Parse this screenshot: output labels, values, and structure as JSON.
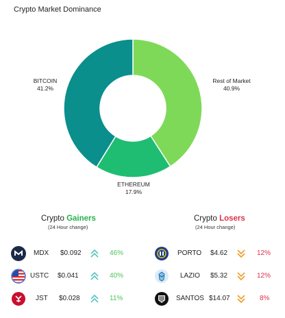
{
  "title": "Crypto Market Dominance",
  "chart_data": {
    "type": "pie",
    "categories": [
      "Rest of Market",
      "ETHEREUM",
      "BITCOIN"
    ],
    "values": [
      40.9,
      17.9,
      41.2
    ],
    "value_labels": [
      "40.9%",
      "17.9%",
      "41.2%"
    ],
    "colors": [
      "#7ed958",
      "#1fbd72",
      "#0a8f8c"
    ]
  },
  "gainers": {
    "title_prefix": "Crypto ",
    "title_accent": "Gainers",
    "subtitle": "(24 Hour change)",
    "items": [
      {
        "symbol": "MDX",
        "price": "$0.092",
        "change": "46%",
        "icon": "mdx-logo"
      },
      {
        "symbol": "USTC",
        "price": "$0.041",
        "change": "40%",
        "icon": "us-flag-logo"
      },
      {
        "symbol": "JST",
        "price": "$0.028",
        "change": "11%",
        "icon": "jst-logo"
      }
    ]
  },
  "losers": {
    "title_prefix": "Crypto ",
    "title_accent": "Losers",
    "subtitle": "(24 Hour change)",
    "items": [
      {
        "symbol": "PORTO",
        "price": "$4.62",
        "change": "12%",
        "icon": "porto-logo"
      },
      {
        "symbol": "LAZIO",
        "price": "$5.32",
        "change": "12%",
        "icon": "lazio-logo"
      },
      {
        "symbol": "SANTOS",
        "price": "$14.07",
        "change": "8%",
        "icon": "santos-logo"
      }
    ]
  }
}
